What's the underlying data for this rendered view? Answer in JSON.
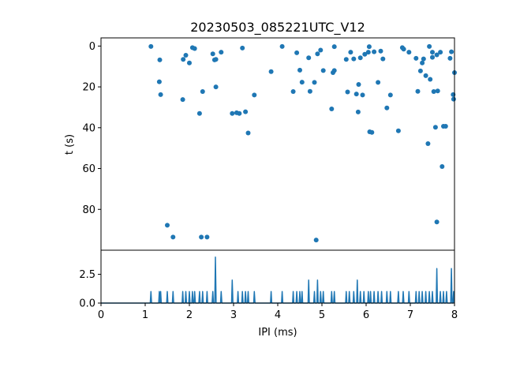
{
  "chart_data": [
    {
      "type": "scatter",
      "title": "20230503_085221UTC_V12",
      "xlabel": "",
      "ylabel": "t (s)",
      "xlim": [
        0,
        8
      ],
      "ylim": [
        100,
        -4
      ],
      "y_inverted": true,
      "yticks": [
        0,
        20,
        40,
        60,
        80
      ],
      "ytick_labels": [
        "0",
        "20",
        "40",
        "60",
        "80"
      ],
      "marker_color": "#1f77b4",
      "points": [
        [
          1.13,
          0.2
        ],
        [
          1.33,
          6.8
        ],
        [
          1.32,
          17.5
        ],
        [
          1.35,
          23.8
        ],
        [
          1.5,
          87.8
        ],
        [
          1.63,
          93.6
        ],
        [
          1.86,
          6.5
        ],
        [
          1.85,
          26.2
        ],
        [
          1.92,
          4.5
        ],
        [
          2.0,
          8.3
        ],
        [
          2.07,
          0.8
        ],
        [
          2.12,
          1.2
        ],
        [
          2.23,
          33.0
        ],
        [
          2.27,
          93.6
        ],
        [
          2.3,
          22.3
        ],
        [
          2.4,
          93.6
        ],
        [
          2.53,
          3.8
        ],
        [
          2.57,
          6.8
        ],
        [
          2.6,
          6.5
        ],
        [
          2.6,
          20.0
        ],
        [
          2.72,
          3.0
        ],
        [
          2.97,
          33.0
        ],
        [
          3.07,
          32.7
        ],
        [
          3.13,
          33.0
        ],
        [
          3.2,
          1.0
        ],
        [
          3.27,
          32.2
        ],
        [
          3.33,
          42.6
        ],
        [
          3.47,
          24.0
        ],
        [
          3.85,
          12.5
        ],
        [
          4.1,
          0.2
        ],
        [
          4.35,
          22.3
        ],
        [
          4.43,
          3.3
        ],
        [
          4.5,
          11.8
        ],
        [
          4.55,
          17.7
        ],
        [
          4.7,
          5.8
        ],
        [
          4.73,
          22.2
        ],
        [
          4.83,
          17.8
        ],
        [
          4.87,
          95.0
        ],
        [
          4.9,
          3.8
        ],
        [
          4.97,
          2.0
        ],
        [
          5.03,
          12.0
        ],
        [
          5.22,
          30.8
        ],
        [
          5.25,
          13.0
        ],
        [
          5.28,
          12.0
        ],
        [
          5.28,
          0.3
        ],
        [
          5.55,
          6.5
        ],
        [
          5.58,
          22.5
        ],
        [
          5.65,
          3.0
        ],
        [
          5.72,
          6.3
        ],
        [
          5.78,
          23.5
        ],
        [
          5.82,
          32.3
        ],
        [
          5.83,
          18.8
        ],
        [
          5.87,
          5.8
        ],
        [
          5.92,
          24.0
        ],
        [
          5.97,
          4.0
        ],
        [
          6.05,
          3.0
        ],
        [
          6.07,
          0.3
        ],
        [
          6.08,
          42.0
        ],
        [
          6.13,
          42.3
        ],
        [
          6.18,
          2.8
        ],
        [
          6.27,
          17.8
        ],
        [
          6.33,
          2.5
        ],
        [
          6.38,
          6.3
        ],
        [
          6.47,
          30.3
        ],
        [
          6.55,
          24.0
        ],
        [
          6.73,
          41.5
        ],
        [
          6.82,
          0.8
        ],
        [
          6.85,
          1.5
        ],
        [
          6.97,
          3.0
        ],
        [
          7.13,
          6.0
        ],
        [
          7.17,
          22.2
        ],
        [
          7.23,
          12.2
        ],
        [
          7.27,
          8.3
        ],
        [
          7.3,
          6.3
        ],
        [
          7.35,
          14.5
        ],
        [
          7.4,
          47.8
        ],
        [
          7.43,
          0.2
        ],
        [
          7.45,
          16.3
        ],
        [
          7.5,
          3.0
        ],
        [
          7.5,
          5.5
        ],
        [
          7.53,
          22.3
        ],
        [
          7.57,
          39.8
        ],
        [
          7.6,
          4.3
        ],
        [
          7.6,
          86.2
        ],
        [
          7.62,
          22.0
        ],
        [
          7.68,
          3.0
        ],
        [
          7.72,
          59.0
        ],
        [
          7.75,
          39.3
        ],
        [
          7.8,
          39.3
        ],
        [
          7.9,
          6.0
        ],
        [
          7.93,
          2.8
        ],
        [
          7.97,
          23.8
        ],
        [
          7.98,
          26.0
        ],
        [
          8.0,
          13.0
        ]
      ]
    },
    {
      "type": "line",
      "xlabel": "IPI (ms)",
      "ylabel": "",
      "xlim": [
        0,
        8
      ],
      "ylim": [
        0,
        4.6
      ],
      "xticks": [
        0,
        1,
        2,
        3,
        4,
        5,
        6,
        7,
        8
      ],
      "xtick_labels": [
        "0",
        "1",
        "2",
        "3",
        "4",
        "5",
        "6",
        "7",
        "8"
      ],
      "yticks": [
        0,
        2.5
      ],
      "ytick_labels": [
        "0.0",
        "2.5"
      ],
      "line_color": "#1f77b4",
      "spikes": [
        [
          1.13,
          1
        ],
        [
          1.32,
          1
        ],
        [
          1.35,
          1
        ],
        [
          1.5,
          1
        ],
        [
          1.63,
          1
        ],
        [
          1.85,
          1
        ],
        [
          1.92,
          1
        ],
        [
          2.0,
          1
        ],
        [
          2.07,
          1
        ],
        [
          2.12,
          1
        ],
        [
          2.23,
          1
        ],
        [
          2.3,
          1
        ],
        [
          2.4,
          1
        ],
        [
          2.53,
          1
        ],
        [
          2.59,
          4
        ],
        [
          2.72,
          1
        ],
        [
          2.97,
          2
        ],
        [
          3.1,
          1
        ],
        [
          3.2,
          1
        ],
        [
          3.27,
          1
        ],
        [
          3.33,
          1
        ],
        [
          3.47,
          1
        ],
        [
          3.85,
          1
        ],
        [
          4.1,
          1
        ],
        [
          4.35,
          1
        ],
        [
          4.43,
          1
        ],
        [
          4.5,
          1
        ],
        [
          4.55,
          1
        ],
        [
          4.7,
          2
        ],
        [
          4.83,
          1
        ],
        [
          4.9,
          2
        ],
        [
          4.97,
          1
        ],
        [
          5.03,
          1
        ],
        [
          5.22,
          1
        ],
        [
          5.28,
          1
        ],
        [
          5.55,
          1
        ],
        [
          5.62,
          1
        ],
        [
          5.72,
          1
        ],
        [
          5.8,
          2
        ],
        [
          5.87,
          1
        ],
        [
          5.95,
          1
        ],
        [
          6.05,
          1
        ],
        [
          6.1,
          1
        ],
        [
          6.18,
          1
        ],
        [
          6.27,
          1
        ],
        [
          6.35,
          1
        ],
        [
          6.47,
          1
        ],
        [
          6.55,
          1
        ],
        [
          6.73,
          1
        ],
        [
          6.84,
          1
        ],
        [
          6.97,
          1
        ],
        [
          7.13,
          1
        ],
        [
          7.2,
          1
        ],
        [
          7.27,
          1
        ],
        [
          7.35,
          1
        ],
        [
          7.43,
          1
        ],
        [
          7.5,
          1
        ],
        [
          7.6,
          3
        ],
        [
          7.68,
          1
        ],
        [
          7.75,
          1
        ],
        [
          7.82,
          1
        ],
        [
          7.93,
          3
        ],
        [
          7.98,
          1
        ]
      ]
    }
  ]
}
